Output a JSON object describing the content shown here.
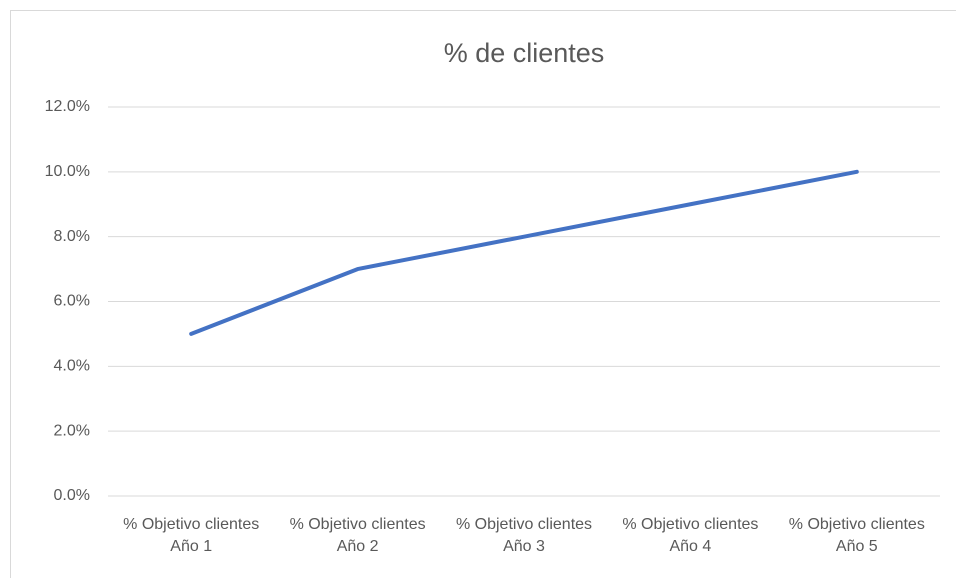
{
  "chart_data": {
    "type": "line",
    "title": "% de clientes",
    "categories": [
      "% Objetivo clientes Año 1",
      "% Objetivo clientes Año 2",
      "% Objetivo clientes Año 3",
      "% Objetivo clientes Año 4",
      "% Objetivo clientes Año 5"
    ],
    "series": [
      {
        "name": "% de clientes",
        "color": "#4472c4",
        "values": [
          5,
          7,
          8,
          9,
          10
        ]
      }
    ],
    "ylim": [
      0,
      12
    ],
    "yticks": [
      {
        "value": 0,
        "label": "0.0%"
      },
      {
        "value": 2,
        "label": "2.0%"
      },
      {
        "value": 4,
        "label": "4.0%"
      },
      {
        "value": 6,
        "label": "6.0%"
      },
      {
        "value": 8,
        "label": "8.0%"
      },
      {
        "value": 10,
        "label": "10.0%"
      },
      {
        "value": 12,
        "label": "12.0%"
      }
    ],
    "grid": true
  }
}
